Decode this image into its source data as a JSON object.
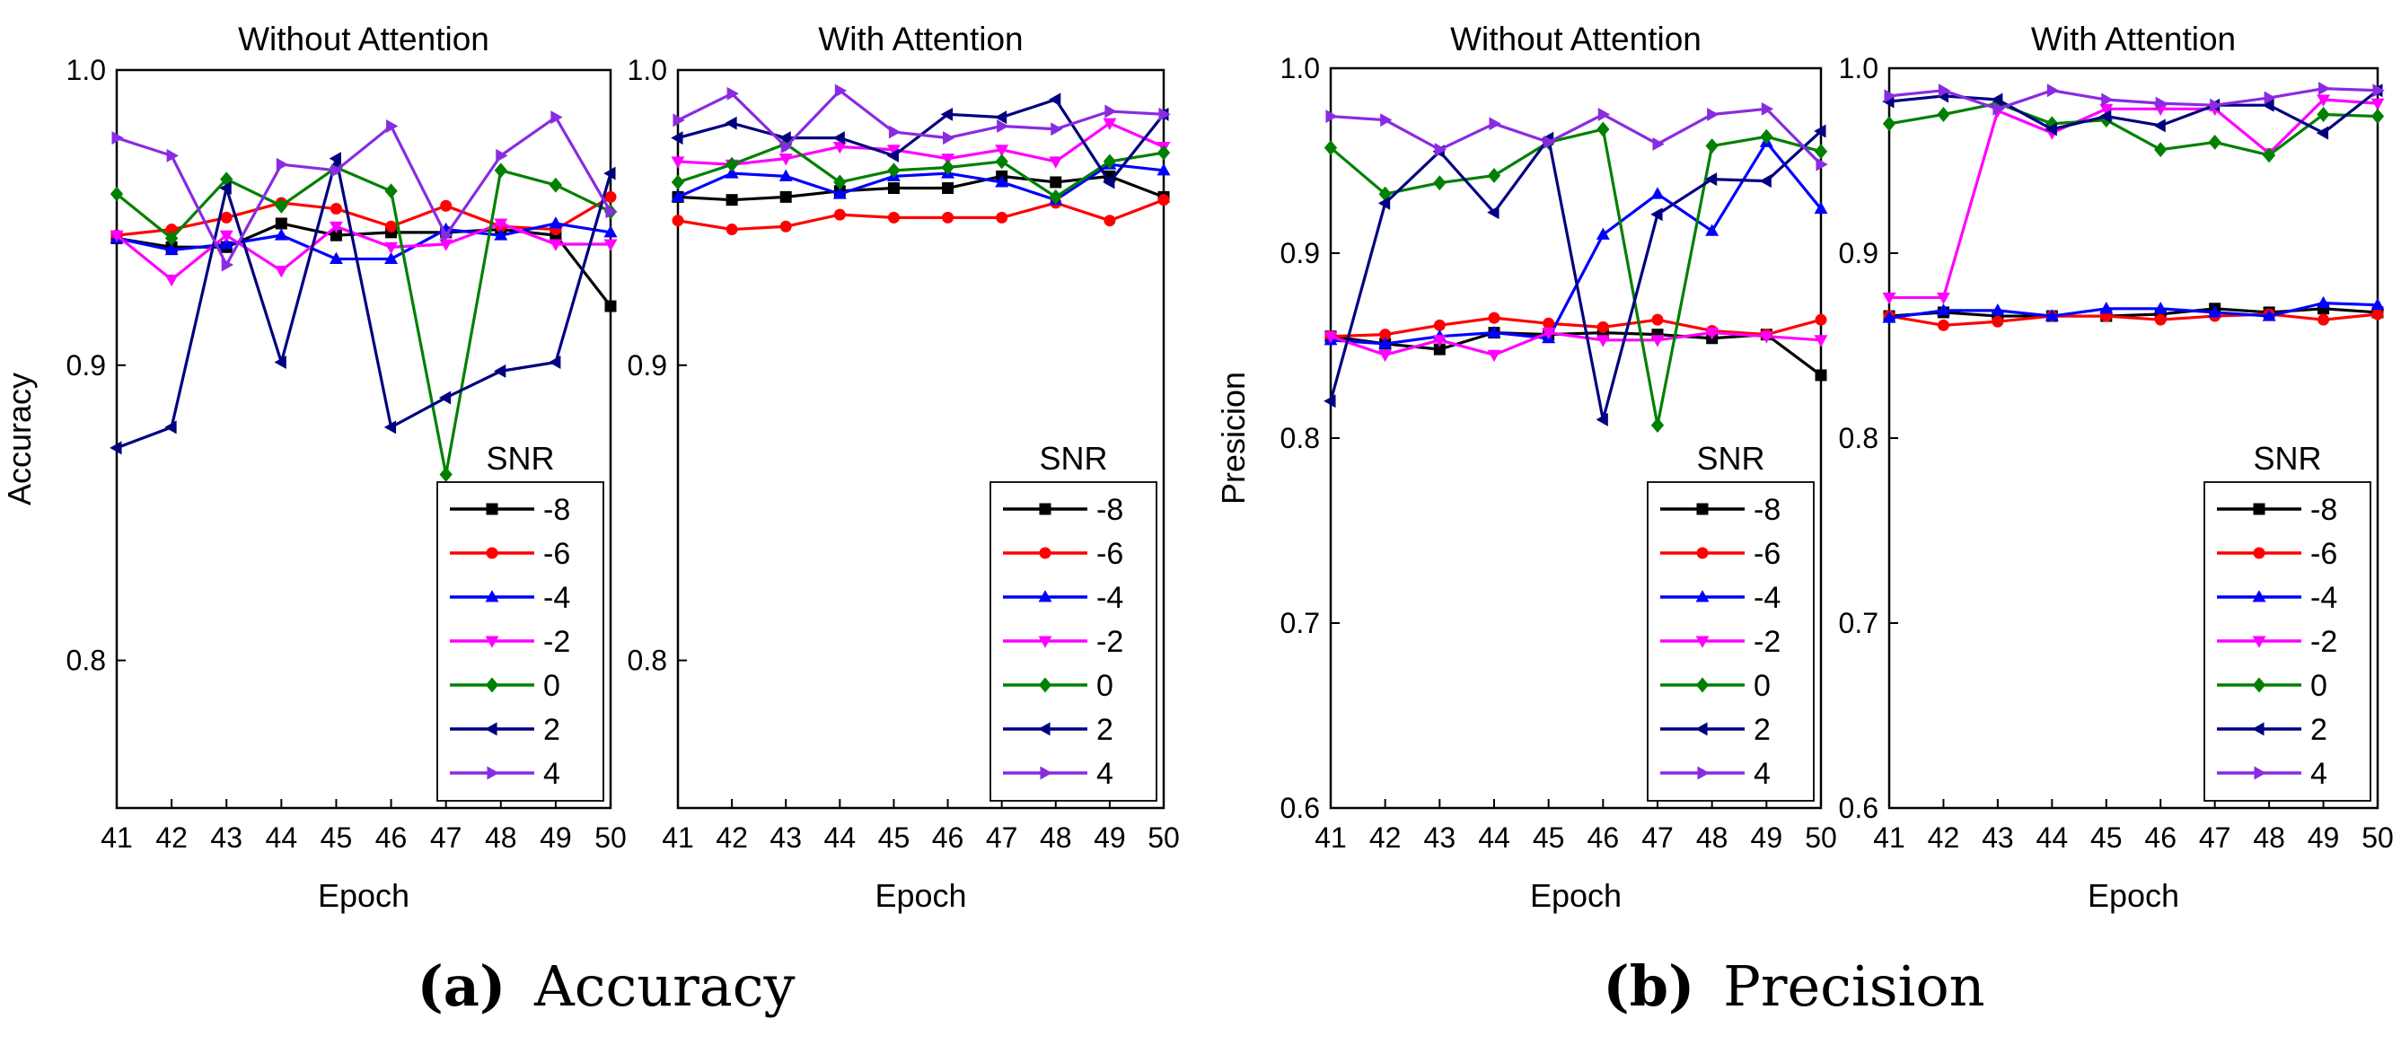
{
  "figure": {
    "captions": [
      {
        "label": "(a)",
        "text": "Accuracy"
      },
      {
        "label": "(b)",
        "text": "Precision"
      }
    ]
  },
  "series_style": [
    {
      "name": "-8",
      "color": "#000000",
      "marker": "square"
    },
    {
      "name": "-6",
      "color": "#ff0000",
      "marker": "circle"
    },
    {
      "name": "-4",
      "color": "#0000ff",
      "marker": "triangle-up"
    },
    {
      "name": "-2",
      "color": "#ff00ff",
      "marker": "triangle-down"
    },
    {
      "name": "0",
      "color": "#008000",
      "marker": "diamond"
    },
    {
      "name": "2",
      "color": "#000080",
      "marker": "triangle-left"
    },
    {
      "name": "4",
      "color": "#8a2be2",
      "marker": "triangle-right"
    }
  ],
  "chart_data": [
    {
      "type": "line",
      "panel": "a",
      "title": "Without Attention",
      "xlabel": "Epoch",
      "ylabel": "Accuracy",
      "x": [
        41,
        42,
        43,
        44,
        45,
        46,
        47,
        48,
        49,
        50
      ],
      "xlim": [
        41,
        50
      ],
      "ylim": [
        0.75,
        1.0
      ],
      "yticks": [
        0.8,
        0.9,
        1.0
      ],
      "ytick_labels": [
        "0.8",
        "0.9",
        "1.0"
      ],
      "legend_title": "SNR",
      "legend_position": "bottom-right",
      "series": [
        {
          "name": "-8",
          "values": [
            0.943,
            0.94,
            0.94,
            0.948,
            0.944,
            0.945,
            0.945,
            0.946,
            0.944,
            0.92
          ]
        },
        {
          "name": "-6",
          "values": [
            0.944,
            0.946,
            0.95,
            0.955,
            0.953,
            0.947,
            0.954,
            0.947,
            0.946,
            0.957
          ]
        },
        {
          "name": "-4",
          "values": [
            0.943,
            0.939,
            0.941,
            0.944,
            0.936,
            0.936,
            0.946,
            0.944,
            0.948,
            0.945
          ]
        },
        {
          "name": "-2",
          "values": [
            0.944,
            0.929,
            0.944,
            0.932,
            0.947,
            0.94,
            0.941,
            0.948,
            0.941,
            0.941
          ]
        },
        {
          "name": "0",
          "values": [
            0.958,
            0.943,
            0.963,
            0.954,
            0.967,
            0.959,
            0.863,
            0.966,
            0.961,
            0.952
          ]
        },
        {
          "name": "2",
          "values": [
            0.872,
            0.879,
            0.96,
            0.901,
            0.97,
            0.879,
            0.889,
            0.898,
            0.901,
            0.965
          ]
        },
        {
          "name": "4",
          "values": [
            0.977,
            0.971,
            0.934,
            0.968,
            0.966,
            0.981,
            0.944,
            0.971,
            0.984,
            0.952
          ]
        }
      ]
    },
    {
      "type": "line",
      "panel": "a",
      "title": "With Attention",
      "xlabel": "Epoch",
      "ylabel": "",
      "x": [
        41,
        42,
        43,
        44,
        45,
        46,
        47,
        48,
        49,
        50
      ],
      "xlim": [
        41,
        50
      ],
      "ylim": [
        0.75,
        1.0
      ],
      "yticks": [
        0.8,
        0.9,
        1.0
      ],
      "ytick_labels": [
        "0.8",
        "0.9",
        "1.0"
      ],
      "legend_title": "SNR",
      "legend_position": "bottom-right",
      "series": [
        {
          "name": "-8",
          "values": [
            0.957,
            0.956,
            0.957,
            0.959,
            0.96,
            0.96,
            0.964,
            0.962,
            0.964,
            0.957
          ]
        },
        {
          "name": "-6",
          "values": [
            0.949,
            0.946,
            0.947,
            0.951,
            0.95,
            0.95,
            0.95,
            0.955,
            0.949,
            0.956
          ]
        },
        {
          "name": "-4",
          "values": [
            0.957,
            0.965,
            0.964,
            0.958,
            0.964,
            0.965,
            0.962,
            0.956,
            0.968,
            0.966
          ]
        },
        {
          "name": "-2",
          "values": [
            0.969,
            0.968,
            0.97,
            0.974,
            0.973,
            0.97,
            0.973,
            0.969,
            0.982,
            0.974
          ]
        },
        {
          "name": "0",
          "values": [
            0.962,
            0.968,
            0.975,
            0.962,
            0.966,
            0.967,
            0.969,
            0.957,
            0.969,
            0.972
          ]
        },
        {
          "name": "2",
          "values": [
            0.977,
            0.982,
            0.977,
            0.977,
            0.971,
            0.985,
            0.984,
            0.99,
            0.962,
            0.985
          ]
        },
        {
          "name": "4",
          "values": [
            0.983,
            0.992,
            0.974,
            0.993,
            0.979,
            0.977,
            0.981,
            0.98,
            0.986,
            0.985
          ]
        }
      ]
    },
    {
      "type": "line",
      "panel": "b",
      "title": "Without Attention",
      "xlabel": "Epoch",
      "ylabel": "Presicion",
      "x": [
        41,
        42,
        43,
        44,
        45,
        46,
        47,
        48,
        49,
        50
      ],
      "xlim": [
        41,
        50
      ],
      "ylim": [
        0.6,
        1.0
      ],
      "yticks": [
        0.6,
        0.7,
        0.8,
        0.9,
        1.0
      ],
      "ytick_labels": [
        "0.6",
        "0.7",
        "0.8",
        "0.9",
        "1.0"
      ],
      "legend_title": "SNR",
      "legend_position": "bottom-right",
      "series": [
        {
          "name": "-8",
          "values": [
            0.855,
            0.851,
            0.848,
            0.857,
            0.856,
            0.857,
            0.856,
            0.854,
            0.856,
            0.834
          ]
        },
        {
          "name": "-6",
          "values": [
            0.855,
            0.856,
            0.861,
            0.865,
            0.862,
            0.86,
            0.864,
            0.858,
            0.856,
            0.864
          ]
        },
        {
          "name": "-4",
          "values": [
            0.853,
            0.851,
            0.855,
            0.857,
            0.854,
            0.91,
            0.932,
            0.912,
            0.96,
            0.924
          ]
        },
        {
          "name": "-2",
          "values": [
            0.855,
            0.845,
            0.853,
            0.845,
            0.857,
            0.853,
            0.853,
            0.857,
            0.855,
            0.853
          ]
        },
        {
          "name": "0",
          "values": [
            0.957,
            0.932,
            0.938,
            0.942,
            0.96,
            0.967,
            0.807,
            0.958,
            0.963,
            0.955
          ]
        },
        {
          "name": "2",
          "values": [
            0.82,
            0.927,
            0.955,
            0.922,
            0.962,
            0.81,
            0.921,
            0.94,
            0.939,
            0.966
          ]
        },
        {
          "name": "4",
          "values": [
            0.974,
            0.972,
            0.956,
            0.97,
            0.96,
            0.975,
            0.959,
            0.975,
            0.978,
            0.948
          ]
        }
      ]
    },
    {
      "type": "line",
      "panel": "b",
      "title": "With Attention",
      "xlabel": "Epoch",
      "ylabel": "",
      "x": [
        41,
        42,
        43,
        44,
        45,
        46,
        47,
        48,
        49,
        50
      ],
      "xlim": [
        41,
        50
      ],
      "ylim": [
        0.6,
        1.0
      ],
      "yticks": [
        0.6,
        0.7,
        0.8,
        0.9,
        1.0
      ],
      "ytick_labels": [
        "0.6",
        "0.7",
        "0.8",
        "0.9",
        "1.0"
      ],
      "legend_title": "SNR",
      "legend_position": "bottom-right",
      "series": [
        {
          "name": "-8",
          "values": [
            0.866,
            0.868,
            0.866,
            0.866,
            0.866,
            0.867,
            0.87,
            0.868,
            0.87,
            0.868
          ]
        },
        {
          "name": "-6",
          "values": [
            0.866,
            0.861,
            0.863,
            0.866,
            0.866,
            0.864,
            0.866,
            0.867,
            0.864,
            0.867
          ]
        },
        {
          "name": "-4",
          "values": [
            0.865,
            0.869,
            0.869,
            0.866,
            0.87,
            0.87,
            0.868,
            0.866,
            0.873,
            0.872
          ]
        },
        {
          "name": "-2",
          "values": [
            0.876,
            0.876,
            0.977,
            0.965,
            0.978,
            0.978,
            0.978,
            0.954,
            0.983,
            0.981
          ]
        },
        {
          "name": "0",
          "values": [
            0.97,
            0.975,
            0.981,
            0.97,
            0.972,
            0.956,
            0.96,
            0.953,
            0.975,
            0.974
          ]
        },
        {
          "name": "2",
          "values": [
            0.982,
            0.985,
            0.983,
            0.967,
            0.974,
            0.969,
            0.98,
            0.98,
            0.965,
            0.988
          ]
        },
        {
          "name": "4",
          "values": [
            0.985,
            0.988,
            0.978,
            0.988,
            0.983,
            0.981,
            0.98,
            0.984,
            0.989,
            0.988
          ]
        }
      ]
    }
  ]
}
